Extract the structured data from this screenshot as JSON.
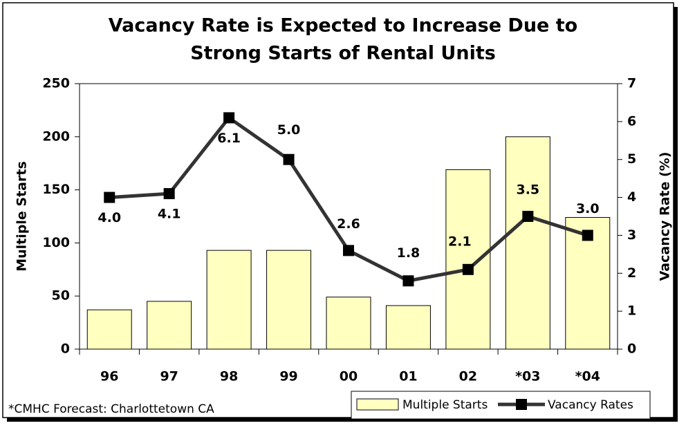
{
  "chart_data": {
    "type": "bar_line",
    "title": [
      "Vacancy Rate is Expected to Increase Due to",
      "Strong Starts of Rental Units"
    ],
    "categories": [
      "96",
      "97",
      "98",
      "99",
      "00",
      "01",
      "02",
      "*03",
      "*04"
    ],
    "series": [
      {
        "name": "Multiple Starts",
        "type": "bar",
        "color": "#ffffc0",
        "values": [
          37,
          45,
          93,
          93,
          49,
          41,
          169,
          200,
          124
        ]
      },
      {
        "name": "Vacancy Rates",
        "type": "line",
        "axis": "y2",
        "color": "#333333",
        "values": [
          4.0,
          4.1,
          6.1,
          5.0,
          2.6,
          1.8,
          2.1,
          3.5,
          3.0
        ],
        "value_labels": [
          "4.0",
          "4.1",
          "6.1",
          "5.0",
          "2.6",
          "1.8",
          "2.1",
          "3.5",
          "3.0"
        ]
      }
    ],
    "ylabel": "Multiple Starts",
    "y2label": "Vacancy Rate (%)",
    "ylim": [
      0,
      250
    ],
    "yticks": [
      0,
      50,
      100,
      150,
      200,
      250
    ],
    "y2lim": [
      0,
      7
    ],
    "y2ticks": [
      0,
      1,
      2,
      3,
      4,
      5,
      6,
      7
    ],
    "legend": "bottom-right",
    "footnote": "*CMHC Forecast: Charlottetown CA"
  }
}
